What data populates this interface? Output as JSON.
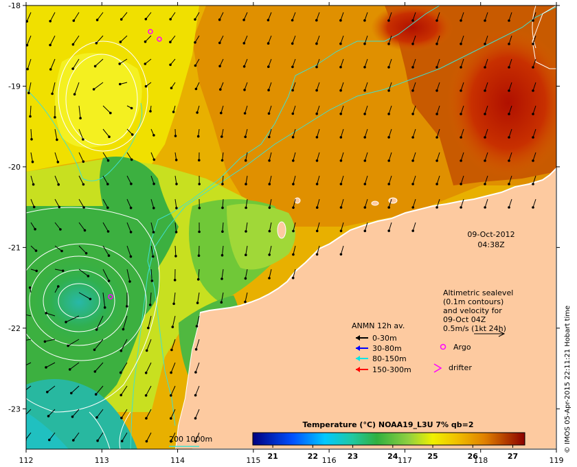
{
  "map": {
    "lon_min": 112,
    "lon_max": 119,
    "lat_min": -23.5,
    "lat_max": -18,
    "lon_ticks": [
      112,
      113,
      114,
      115,
      116,
      117,
      118,
      119
    ],
    "lat_ticks": [
      -18,
      -19,
      -20,
      -21,
      -22,
      -23
    ],
    "lon_tick_labels": [
      "112",
      "113",
      "114",
      "115",
      "116",
      "117",
      "118",
      "119"
    ],
    "lat_tick_labels": [
      "-18",
      "-19",
      "-20",
      "-21",
      "-22",
      "-23"
    ]
  },
  "date_label": {
    "date": "09-Oct-2012",
    "time": "04:38Z"
  },
  "altimetric_note": {
    "lines": [
      "Altimetric sealevel",
      "(0.1m contours)",
      "and velocity for",
      "09-Oct 04Z",
      "0.5m/s (1kt 24h)"
    ]
  },
  "legend": {
    "title": "ANMN 12h av.",
    "items": [
      {
        "label": "0-30m",
        "color": "#000000"
      },
      {
        "label": "30-80m",
        "color": "#0000ff"
      },
      {
        "label": "80-150m",
        "color": "#00e5e5"
      },
      {
        "label": "150-300m",
        "color": "#ff0000"
      }
    ],
    "argo_label": "Argo",
    "argo_color": "#ff00ff",
    "drifter_label": "drifter",
    "drifter_color": "#ff00ff"
  },
  "isobath": {
    "label": "200  1000m",
    "color": "#40e0d0"
  },
  "colorbar": {
    "title": "Temperature (°C) NOAA19_L3U 7% qb=2",
    "min": 20.5,
    "max": 27.3,
    "ticks": [
      21,
      22,
      23,
      24,
      25,
      26,
      27
    ],
    "tick_labels": [
      "21",
      "22",
      "23",
      "24",
      "25",
      "26",
      "27"
    ],
    "stops": [
      {
        "v": 20.5,
        "c": "#00007f"
      },
      {
        "v": 21.5,
        "c": "#0050ff"
      },
      {
        "v": 22.3,
        "c": "#00c8ff"
      },
      {
        "v": 23.0,
        "c": "#20c8a0"
      },
      {
        "v": 23.6,
        "c": "#30b040"
      },
      {
        "v": 24.4,
        "c": "#90d040"
      },
      {
        "v": 25.0,
        "c": "#f0f000"
      },
      {
        "v": 25.6,
        "c": "#f0c000"
      },
      {
        "v": 26.3,
        "c": "#e08000"
      },
      {
        "v": 27.3,
        "c": "#8b0000"
      }
    ]
  },
  "credit": "© IMOS 05-Apr-2015 22:11:21 Hobart time",
  "colors": {
    "land": "#fdcaa0",
    "coast": "#ffffff",
    "contour": "#ffffff"
  }
}
